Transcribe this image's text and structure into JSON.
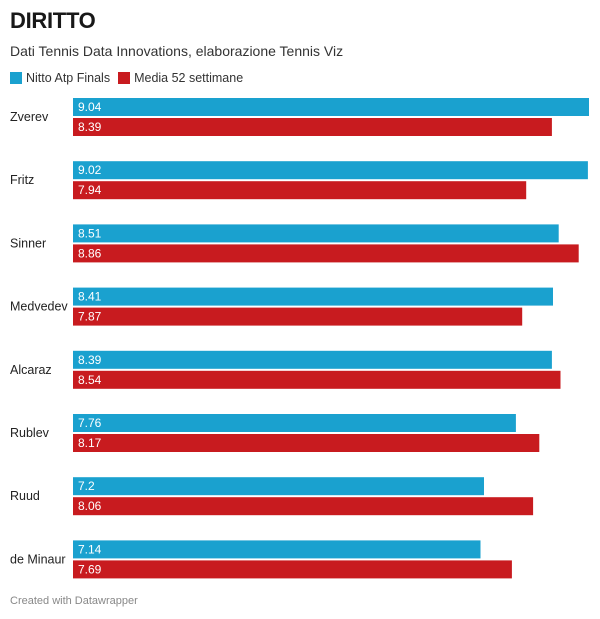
{
  "title": "DIRITTO",
  "subtitle": "Dati Tennis Data Innovations, elaborazione Tennis Viz",
  "footer": "Created with Datawrapper",
  "colors": {
    "series_1": "#1aa1cf",
    "series_2": "#c81b1f"
  },
  "legend": [
    {
      "label": "Nitto Atp Finals",
      "color": "#1aa1cf"
    },
    {
      "label": "Media 52 settimane",
      "color": "#c81b1f"
    }
  ],
  "chart_data": {
    "type": "bar",
    "orientation": "horizontal",
    "categories": [
      "Zverev",
      "Fritz",
      "Sinner",
      "Medvedev",
      "Alcaraz",
      "Rublev",
      "Ruud",
      "de Minaur"
    ],
    "series": [
      {
        "name": "Nitto Atp Finals",
        "values": [
          9.04,
          9.02,
          8.51,
          8.41,
          8.39,
          7.76,
          7.2,
          7.14
        ]
      },
      {
        "name": "Media 52 settimane",
        "values": [
          8.39,
          7.94,
          8.86,
          7.87,
          8.54,
          8.17,
          8.06,
          7.69
        ]
      }
    ],
    "value_labels": [
      [
        "9.04",
        "9.02",
        "8.51",
        "8.41",
        "8.39",
        "7.76",
        "7.2",
        "7.14"
      ],
      [
        "8.39",
        "7.94",
        "8.86",
        "7.87",
        "8.54",
        "8.17",
        "8.06",
        "7.69"
      ]
    ],
    "xlim": [
      0,
      9.04
    ],
    "grid": false,
    "legend_position": "top-left"
  }
}
